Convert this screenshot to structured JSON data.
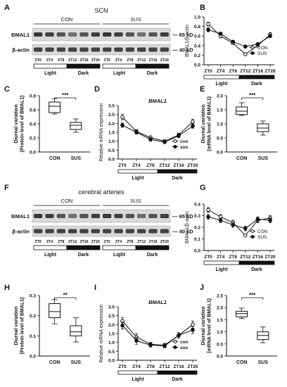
{
  "panels": [
    {
      "letter": "A",
      "title": "SCN",
      "group1": "CON",
      "group2": "SUS",
      "row1": "BMAL1",
      "row1_kd": "— 65 kD",
      "row2": "β-actin",
      "row2_kd": "— 40 kD"
    },
    {
      "letter": "B"
    },
    {
      "letter": "C"
    },
    {
      "letter": "D"
    },
    {
      "letter": "E"
    },
    {
      "letter": "F",
      "title": "cerebral arteries",
      "group1": "CON",
      "group2": "SUS",
      "row1": "BMAL1",
      "row1_kd": "— 65 kD",
      "row2": "β-actin",
      "row2_kd": "— 40 kD"
    },
    {
      "letter": "G"
    },
    {
      "letter": "H"
    },
    {
      "letter": "I"
    },
    {
      "letter": "J"
    }
  ],
  "blot_lanes": [
    "ZT0",
    "ZT4",
    "ZT8",
    "ZT12",
    "ZT16",
    "ZT20",
    "ZT0",
    "ZT4",
    "ZT8",
    "ZT12",
    "ZT16",
    "ZT20"
  ],
  "light_label": "Light",
  "dark_label": "Dark",
  "chart_data": [
    {
      "id": "B",
      "type": "line",
      "categories": [
        "ZT0",
        "ZT4",
        "ZT8",
        "ZT12",
        "ZT16",
        "ZT20"
      ],
      "ylabel": "BMAL1/β-actin",
      "ylim": [
        0.0,
        1.0
      ],
      "yticks": [
        0.0,
        0.2,
        0.4,
        0.6,
        0.8,
        1.0
      ],
      "yticklabels": [
        "0.0",
        "0.2",
        "0.4",
        "0.6",
        "0.8",
        "1.0"
      ],
      "series": [
        {
          "name": "CON",
          "values": [
            0.85,
            0.6,
            0.45,
            0.22,
            0.4,
            0.63
          ],
          "err": [
            0.04,
            0.04,
            0.03,
            0.03,
            0.03,
            0.04
          ]
        },
        {
          "name": "SUS",
          "values": [
            0.73,
            0.65,
            0.48,
            0.38,
            0.43,
            0.6
          ],
          "err": [
            0.04,
            0.03,
            0.03,
            0.03,
            0.03,
            0.03
          ]
        }
      ],
      "legend": "right"
    },
    {
      "id": "C",
      "type": "box",
      "categories": [
        "CON",
        "SUS"
      ],
      "ylabel": "Diurnal variation (Protein level of BMAL1)",
      "ylim": [
        0.0,
        0.8
      ],
      "yticks": [
        0.0,
        0.2,
        0.4,
        0.6,
        0.8
      ],
      "yticklabels": [
        "0.0",
        "0.2",
        "0.4",
        "0.6",
        "0.8"
      ],
      "boxes": [
        {
          "whisker_low": 0.54,
          "q1": 0.56,
          "median": 0.65,
          "q3": 0.71,
          "whisker_high": 0.76
        },
        {
          "whisker_low": 0.28,
          "q1": 0.32,
          "median": 0.38,
          "q3": 0.42,
          "whisker_high": 0.47
        }
      ],
      "significance": "***"
    },
    {
      "id": "D",
      "type": "line",
      "title": "BMAL1",
      "categories": [
        "ZT0",
        "ZT4",
        "ZT8",
        "ZT12",
        "ZT16",
        "ZT20"
      ],
      "ylabel": "Relative mRNA expression",
      "ylim": [
        0.0,
        3.0
      ],
      "yticks": [
        0.0,
        0.5,
        1.0,
        1.5,
        2.0,
        2.5,
        3.0
      ],
      "yticklabels": [
        "0.0",
        "0.5",
        "1.0",
        "1.5",
        "2.0",
        "2.5",
        "3.0"
      ],
      "series": [
        {
          "name": "con",
          "values": [
            2.35,
            1.55,
            1.2,
            1.0,
            1.35,
            2.1
          ],
          "err": [
            0.15,
            0.1,
            0.1,
            0.08,
            0.1,
            0.12
          ]
        },
        {
          "name": "sus",
          "values": [
            1.9,
            1.5,
            1.1,
            0.95,
            1.3,
            1.85
          ],
          "err": [
            0.12,
            0.1,
            0.1,
            0.08,
            0.1,
            0.12
          ]
        }
      ],
      "legend": "right"
    },
    {
      "id": "E",
      "type": "box",
      "categories": [
        "CON",
        "SUS"
      ],
      "ylabel": "Diurnal variation (mRNA level of BMAL1)",
      "ylim": [
        0.0,
        2.0
      ],
      "yticks": [
        0.0,
        0.5,
        1.0,
        1.5,
        2.0
      ],
      "yticklabels": [
        "0.0",
        "0.5",
        "1.0",
        "1.5",
        "2.0"
      ],
      "boxes": [
        {
          "whisker_low": 1.3,
          "q1": 1.33,
          "median": 1.45,
          "q3": 1.6,
          "whisker_high": 1.75
        },
        {
          "whisker_low": 0.6,
          "q1": 0.72,
          "median": 0.85,
          "q3": 1.0,
          "whisker_high": 1.1
        }
      ],
      "significance": "***"
    },
    {
      "id": "G",
      "type": "line",
      "categories": [
        "ZT0",
        "ZT4",
        "ZT8",
        "ZT12",
        "ZT16",
        "ZT20"
      ],
      "ylabel": "BMAL1/β-actin",
      "ylim": [
        0.0,
        0.4
      ],
      "yticks": [
        0.0,
        0.1,
        0.2,
        0.3,
        0.4
      ],
      "yticklabels": [
        "0.0",
        "0.1",
        "0.2",
        "0.3",
        "0.4"
      ],
      "series": [
        {
          "name": "CON",
          "values": [
            0.35,
            0.29,
            0.24,
            0.13,
            0.26,
            0.28
          ],
          "err": [
            0.02,
            0.02,
            0.02,
            0.01,
            0.02,
            0.02
          ]
        },
        {
          "name": "SUS",
          "values": [
            0.29,
            0.26,
            0.22,
            0.19,
            0.27,
            0.26
          ],
          "err": [
            0.02,
            0.02,
            0.02,
            0.02,
            0.02,
            0.02
          ]
        }
      ],
      "legend": "right"
    },
    {
      "id": "H",
      "type": "box",
      "categories": [
        "CON",
        "SUS"
      ],
      "ylabel": "Diurnal variation (Protein level of BMAL1)",
      "ylim": [
        0.0,
        0.3
      ],
      "yticks": [
        0.0,
        0.1,
        0.2,
        0.3
      ],
      "yticklabels": [
        "0.0",
        "0.1",
        "0.2",
        "0.3"
      ],
      "boxes": [
        {
          "whisker_low": 0.16,
          "q1": 0.19,
          "median": 0.22,
          "q3": 0.26,
          "whisker_high": 0.28
        },
        {
          "whisker_low": 0.07,
          "q1": 0.1,
          "median": 0.12,
          "q3": 0.15,
          "whisker_high": 0.19
        }
      ],
      "significance": "**"
    },
    {
      "id": "I",
      "type": "line",
      "title": "BMAL1",
      "categories": [
        "ZT0",
        "ZT4",
        "ZT8",
        "ZT12",
        "ZT16",
        "ZT20"
      ],
      "ylabel": "Relative mRNA expression",
      "ylim": [
        0.0,
        3.0
      ],
      "yticks": [
        0.0,
        0.5,
        1.0,
        1.5,
        2.0,
        2.5,
        3.0
      ],
      "yticklabels": [
        "0.0",
        "0.5",
        "1.0",
        "1.5",
        "2.0",
        "2.5",
        "3.0"
      ],
      "series": [
        {
          "name": "con",
          "values": [
            2.2,
            1.3,
            0.9,
            0.85,
            1.4,
            2.0
          ],
          "err": [
            0.2,
            0.2,
            0.1,
            0.1,
            0.15,
            0.2
          ]
        },
        {
          "name": "sus",
          "values": [
            1.95,
            1.1,
            0.85,
            0.8,
            1.4,
            1.7
          ],
          "err": [
            0.2,
            0.2,
            0.1,
            0.1,
            0.15,
            0.2
          ]
        }
      ],
      "legend": "right"
    },
    {
      "id": "J",
      "type": "box",
      "categories": [
        "CON",
        "SUS"
      ],
      "ylabel": "Diurnal variation (mRNA level of BMAL1)",
      "ylim": [
        0.0,
        2.5
      ],
      "yticks": [
        0.0,
        0.5,
        1.0,
        1.5,
        2.0,
        2.5
      ],
      "yticklabels": [
        "0.0",
        "0.5",
        "1.0",
        "1.5",
        "2.0",
        "2.5"
      ],
      "boxes": [
        {
          "whisker_low": 1.55,
          "q1": 1.62,
          "median": 1.75,
          "q3": 1.85,
          "whisker_high": 1.98
        },
        {
          "whisker_low": 0.55,
          "q1": 0.68,
          "median": 0.85,
          "q3": 1.0,
          "whisker_high": 1.2
        }
      ],
      "significance": "***"
    }
  ]
}
